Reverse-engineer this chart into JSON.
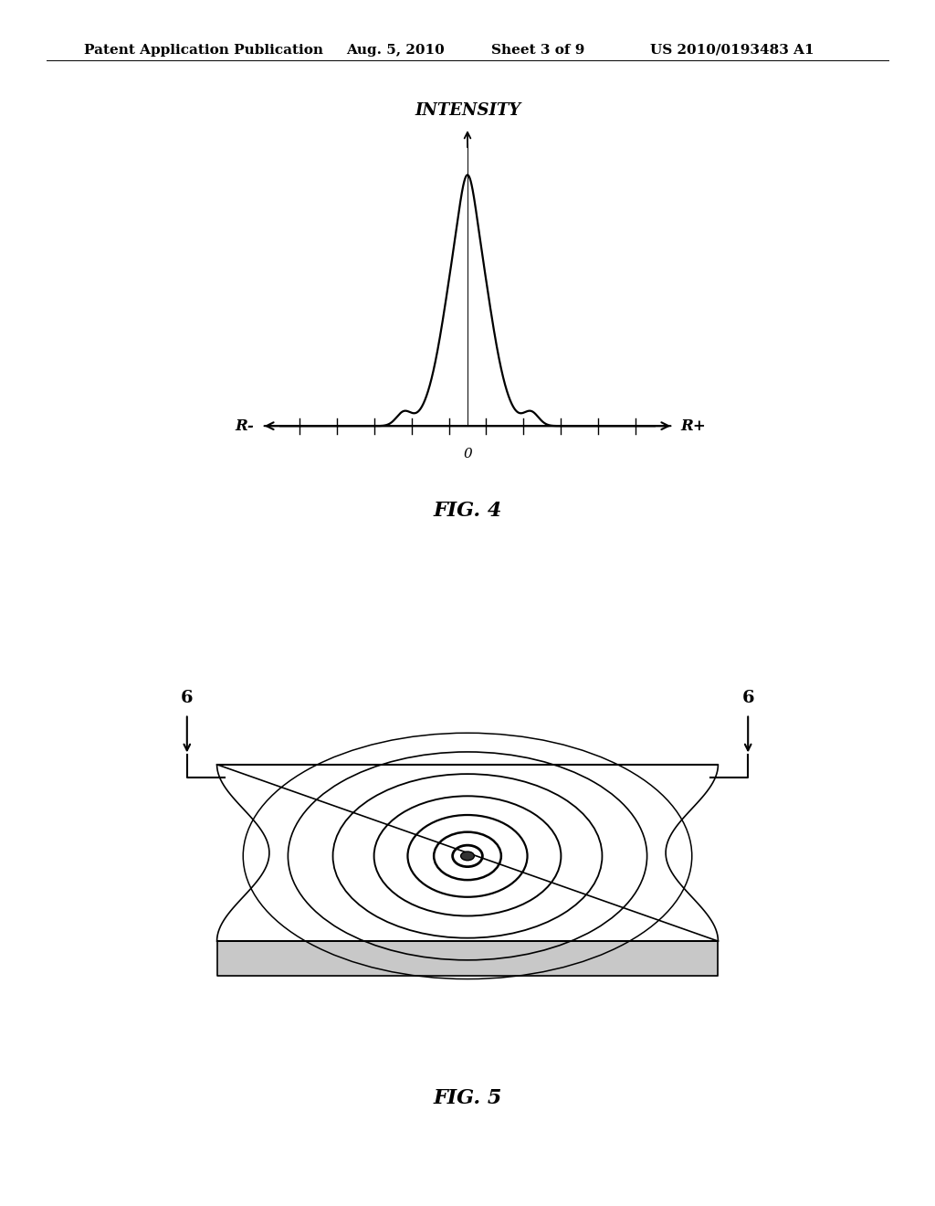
{
  "title_header": "Patent Application Publication",
  "date_header": "Aug. 5, 2010",
  "sheet_header": "Sheet 3 of 9",
  "patent_header": "US 2010/0193483 A1",
  "fig4_label": "FIG. 4",
  "fig5_label": "FIG. 5",
  "intensity_label": "INTENSITY",
  "r_minus_label": "R-",
  "r_plus_label": "R+",
  "zero_label": "0",
  "fig5_arrow_label": "6",
  "background_color": "#ffffff",
  "line_color": "#000000",
  "header_font_size": 11,
  "fig_label_font_size": 16
}
